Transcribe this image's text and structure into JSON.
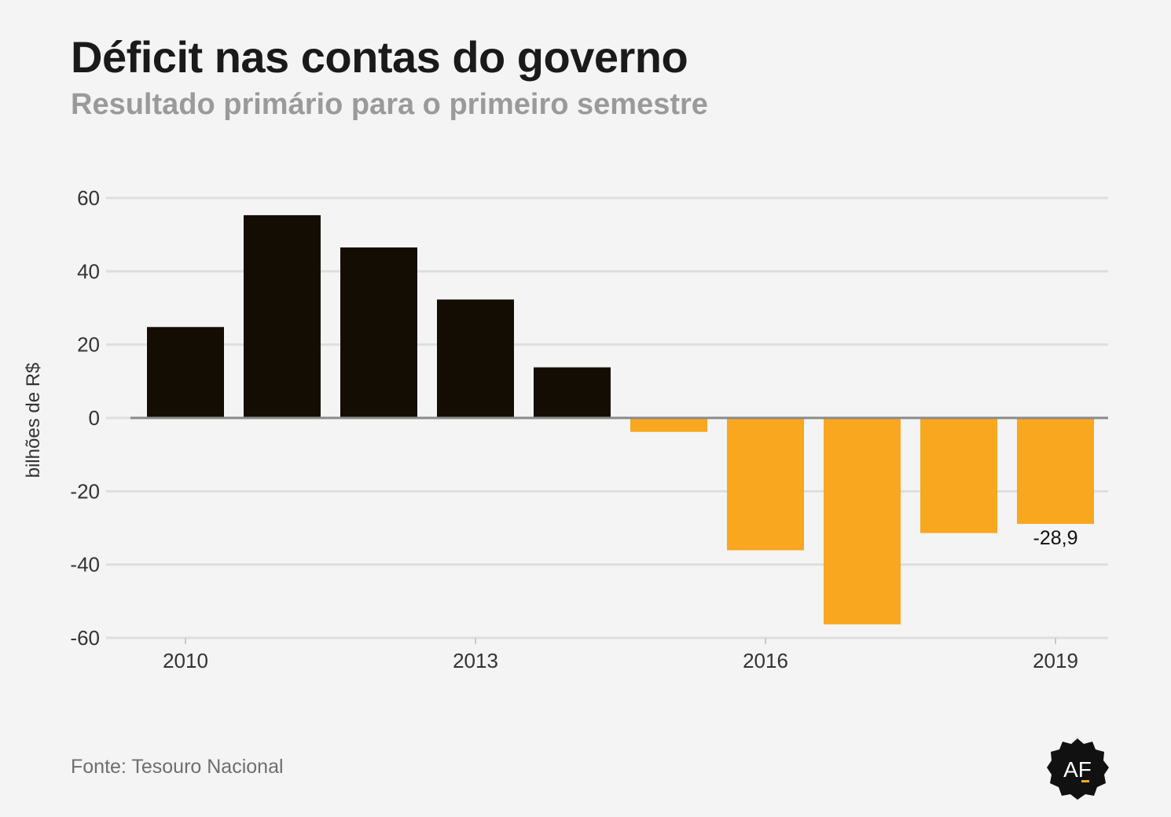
{
  "header": {
    "title": "Déficit nas contas do governo",
    "subtitle": "Resultado primário para o primeiro semestre"
  },
  "footer": {
    "source": "Fonte: Tesouro Nacional",
    "logo_text": "AF"
  },
  "colors": {
    "positive": "#140d04",
    "negative": "#f8a71e",
    "grid": "#dedede",
    "zero_line": "#8a8a8a"
  },
  "chart_data": {
    "type": "bar",
    "title": "Déficit nas contas do governo",
    "subtitle": "Resultado primário para o primeiro semestre",
    "ylabel": "bilhões de R$",
    "xlabel": "",
    "ylim": [
      -60,
      60
    ],
    "yticks": [
      60,
      40,
      20,
      0,
      -20,
      -40,
      -60
    ],
    "grid": true,
    "categories": [
      "2010",
      "2011",
      "2012",
      "2013",
      "2014",
      "2015",
      "2016",
      "2017",
      "2018",
      "2019"
    ],
    "xtick_labels": [
      "2010",
      "2013",
      "2016",
      "2019"
    ],
    "values": [
      24.8,
      55.3,
      46.5,
      32.3,
      13.8,
      -3.8,
      -36.1,
      -56.3,
      -31.4,
      -28.9
    ],
    "annotations": [
      {
        "category": "2019",
        "text": "-28,9"
      }
    ]
  }
}
